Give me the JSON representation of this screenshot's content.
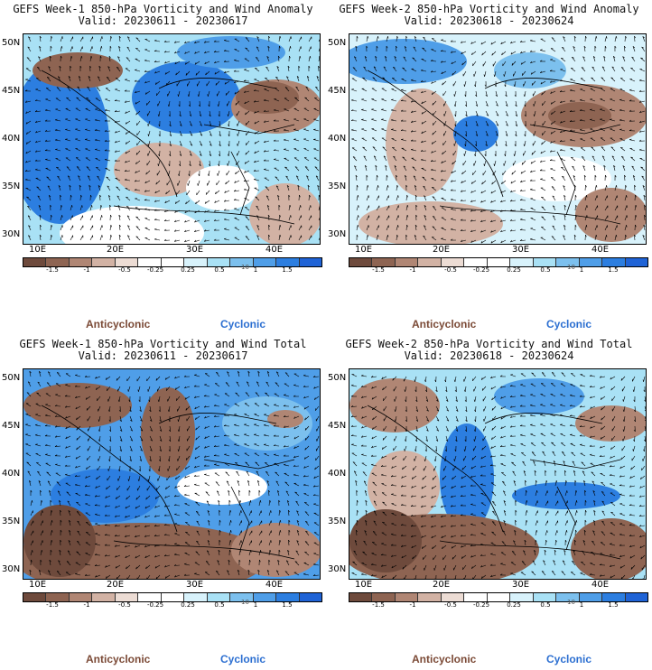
{
  "panels": [
    {
      "line1": "GEFS Week-1 850-hPa Vorticity and Wind Anomaly",
      "line2": "Valid: 20230611 - 20230617"
    },
    {
      "line1": "GEFS Week-2 850-hPa Vorticity and Wind Anomaly",
      "line2": "Valid: 20230618 - 20230624"
    },
    {
      "line1": "GEFS Week-1 850-hPa Vorticity and Wind Total",
      "line2": "Valid: 20230611 - 20230617"
    },
    {
      "line1": "GEFS Week-2 850-hPa Vorticity and Wind Total",
      "line2": "Valid: 20230618 - 20230624"
    }
  ],
  "lat_labels": [
    "50N",
    "45N",
    "40N",
    "35N",
    "30N"
  ],
  "lon_labels": [
    "10E",
    "20E",
    "30E",
    "40E"
  ],
  "colorbar": {
    "labels": [
      "-1.5",
      "-1",
      "-0.5",
      "-0.25",
      "0.25",
      "0.5",
      "1",
      "1.5"
    ],
    "scale": "10",
    "colors": [
      "#6e4a3c",
      "#8e6452",
      "#b08674",
      "#d2b2a4",
      "#ecdcd4",
      "#ffffff",
      "#ffffff",
      "#d8f2fb",
      "#a9e1f5",
      "#7cc0ee",
      "#4f9ee8",
      "#2c7ee0",
      "#1f63d6"
    ]
  },
  "legend": {
    "anticyclonic": "Anticyclonic",
    "cyclonic": "Cyclonic"
  }
}
